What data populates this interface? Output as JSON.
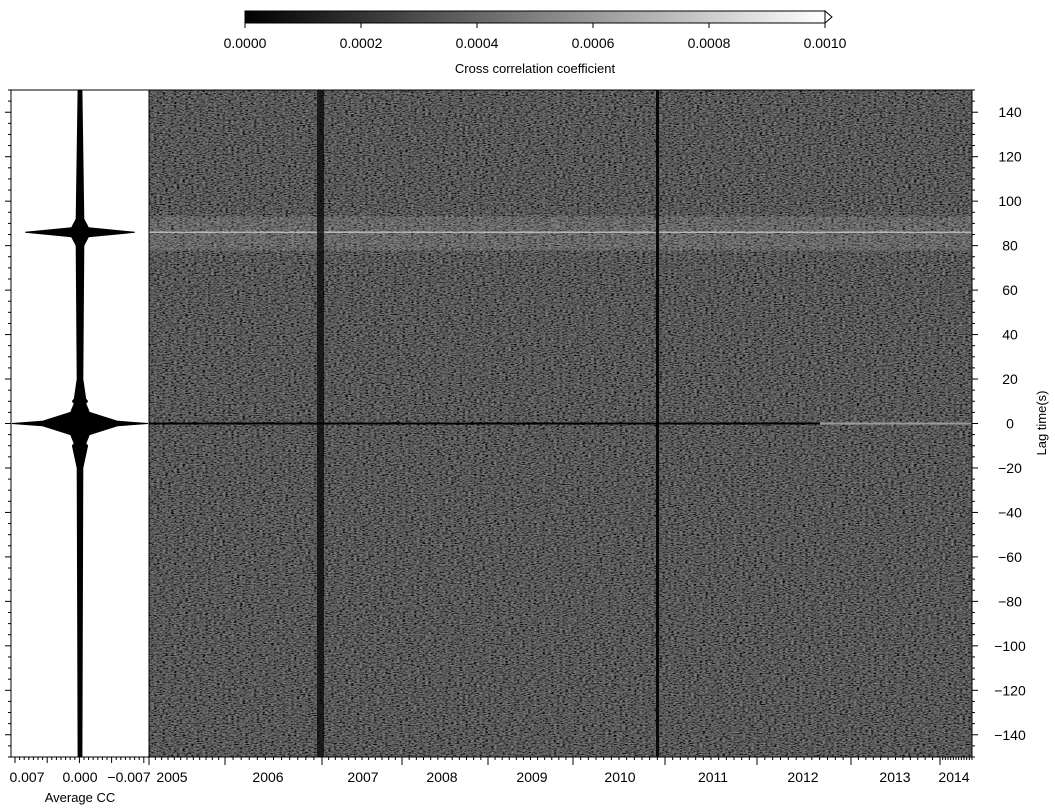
{
  "chart_data": [
    {
      "type": "heatmap",
      "title": "",
      "xlabel": "",
      "ylabel": "Lag time(s)",
      "x_ticks": [
        "2005",
        "2006",
        "2007",
        "2008",
        "2009",
        "2010",
        "2011",
        "2012",
        "2013",
        "2014"
      ],
      "y_ticks": [
        140,
        120,
        100,
        80,
        60,
        40,
        20,
        0,
        -20,
        -40,
        -60,
        -80,
        -100,
        -120,
        -140
      ],
      "ylim": [
        -150,
        150
      ],
      "colorbar": {
        "label": "Cross correlation coefficient",
        "ticks": [
          "0.0000",
          "0.0002",
          "0.0004",
          "0.0006",
          "0.0008",
          "0.0010"
        ],
        "range": [
          0,
          0.001
        ],
        "colormap": [
          "#000000",
          "#ffffff"
        ],
        "extend": "max"
      },
      "coherent_arrivals_lag_s": [
        86,
        0
      ],
      "dark_gap_dates": [
        "2006-09",
        "2010-06"
      ]
    },
    {
      "type": "line",
      "title": "",
      "xlabel": "Average CC",
      "ylabel": "",
      "x_ticks": [
        "0.007",
        "0.000",
        "−0.007"
      ],
      "xlim": [
        0.007,
        -0.007
      ],
      "ylim": [
        -150,
        150
      ],
      "series": [
        {
          "lag_s": [
            -150,
            -20,
            -10,
            -9,
            -5,
            -1,
            0,
            1,
            5,
            9,
            10,
            11,
            20,
            80,
            84,
            86,
            88,
            92,
            150
          ],
          "amplitude_abs": [
            0.0002,
            0.0003,
            0.0008,
            0.0006,
            0.001,
            0.004,
            0.0072,
            0.004,
            0.001,
            0.0006,
            0.0008,
            0.0006,
            0.0003,
            0.0004,
            0.0009,
            0.0058,
            0.0009,
            0.0004,
            0.0002
          ]
        }
      ]
    }
  ]
}
